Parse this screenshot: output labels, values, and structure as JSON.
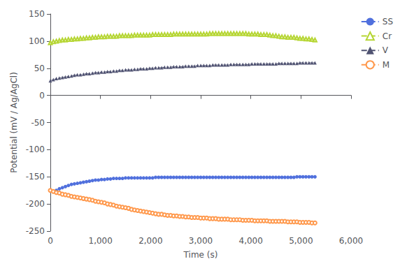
{
  "chart_data": {
    "type": "line",
    "xlabel": "Time (s)",
    "ylabel": "Potential (mV / Ag/AgCl)",
    "xlim": [
      0,
      6000
    ],
    "ylim": [
      -250,
      150
    ],
    "xticks": [
      0,
      1000,
      2000,
      3000,
      4000,
      5000,
      6000
    ],
    "yticks": [
      -250,
      -200,
      -150,
      -100,
      -50,
      0,
      50,
      100,
      150
    ],
    "grid": false,
    "legend": "right",
    "x": [
      0,
      60,
      120,
      180,
      240,
      300,
      360,
      420,
      480,
      540,
      600,
      660,
      720,
      780,
      840,
      900,
      960,
      1020,
      1080,
      1140,
      1200,
      1260,
      1320,
      1380,
      1440,
      1500,
      1560,
      1620,
      1680,
      1740,
      1800,
      1860,
      1920,
      1980,
      2040,
      2100,
      2160,
      2220,
      2280,
      2340,
      2400,
      2460,
      2520,
      2580,
      2640,
      2700,
      2760,
      2820,
      2880,
      2940,
      3000,
      3060,
      3120,
      3180,
      3240,
      3300,
      3360,
      3420,
      3480,
      3540,
      3600,
      3660,
      3720,
      3780,
      3840,
      3900,
      3960,
      4020,
      4080,
      4140,
      4200,
      4260,
      4320,
      4380,
      4440,
      4500,
      4560,
      4620,
      4680,
      4740,
      4800,
      4860,
      4920,
      4980,
      5040,
      5100,
      5160,
      5220,
      5280
    ],
    "series": [
      {
        "name": "SS",
        "marker": "circle",
        "line_style": "dashed",
        "values": [
          -175,
          -177,
          -175,
          -172,
          -170,
          -168,
          -166,
          -164,
          -163,
          -162,
          -161,
          -160,
          -159,
          -158,
          -157,
          -156,
          -156,
          -155,
          -155,
          -154,
          -154,
          -153,
          -153,
          -153,
          -153,
          -152,
          -152,
          -152,
          -152,
          -152,
          -152,
          -152,
          -152,
          -152,
          -152,
          -151,
          -151,
          -151,
          -151,
          -151,
          -151,
          -151,
          -151,
          -151,
          -151,
          -151,
          -151,
          -151,
          -151,
          -151,
          -151,
          -151,
          -151,
          -151,
          -151,
          -151,
          -151,
          -151,
          -151,
          -151,
          -151,
          -151,
          -151,
          -151,
          -151,
          -151,
          -151,
          -151,
          -151,
          -151,
          -151,
          -151,
          -151,
          -151,
          -151,
          -151,
          -151,
          -151,
          -151,
          -151,
          -151,
          -151,
          -150,
          -150,
          -150,
          -150,
          -150,
          -150,
          -150
        ]
      },
      {
        "name": "Cr",
        "marker": "open_triangle",
        "line_style": "dashed",
        "values": [
          97,
          99,
          100,
          101,
          102,
          102,
          103,
          103,
          104,
          104,
          105,
          105,
          106,
          106,
          107,
          107,
          108,
          108,
          108,
          109,
          109,
          109,
          109,
          110,
          110,
          110,
          110,
          110,
          111,
          111,
          111,
          111,
          111,
          111,
          112,
          112,
          112,
          112,
          112,
          112,
          112,
          113,
          113,
          113,
          113,
          113,
          113,
          113,
          113,
          113,
          113,
          113,
          113,
          114,
          114,
          114,
          114,
          114,
          114,
          114,
          114,
          114,
          114,
          114,
          114,
          114,
          113,
          113,
          113,
          113,
          112,
          112,
          112,
          111,
          110,
          110,
          109,
          108,
          108,
          107,
          107,
          107,
          106,
          105,
          105,
          104,
          104,
          103,
          102
        ]
      },
      {
        "name": "V",
        "marker": "triangle",
        "line_style": "dashed",
        "values": [
          27,
          29,
          31,
          32,
          33,
          34,
          35,
          36,
          37,
          38,
          38,
          39,
          40,
          40,
          41,
          42,
          42,
          43,
          43,
          44,
          44,
          45,
          45,
          46,
          46,
          47,
          47,
          47,
          48,
          48,
          49,
          49,
          49,
          50,
          50,
          51,
          51,
          51,
          52,
          52,
          52,
          53,
          53,
          53,
          53,
          54,
          54,
          54,
          54,
          55,
          55,
          55,
          55,
          55,
          56,
          56,
          56,
          56,
          56,
          56,
          57,
          57,
          57,
          57,
          57,
          57,
          57,
          58,
          58,
          58,
          58,
          58,
          58,
          58,
          58,
          58,
          59,
          59,
          59,
          59,
          59,
          59,
          59,
          60,
          60,
          60,
          60,
          60,
          60
        ]
      },
      {
        "name": "M",
        "marker": "open_circle",
        "line_style": "dashed",
        "values": [
          -175,
          -177,
          -179,
          -180,
          -182,
          -183,
          -184,
          -186,
          -187,
          -188,
          -189,
          -190,
          -191,
          -192,
          -193,
          -195,
          -196,
          -197,
          -198,
          -200,
          -201,
          -202,
          -204,
          -205,
          -206,
          -207,
          -208,
          -210,
          -211,
          -212,
          -213,
          -214,
          -215,
          -216,
          -217,
          -218,
          -219,
          -219,
          -220,
          -221,
          -221,
          -222,
          -222,
          -223,
          -223,
          -224,
          -224,
          -225,
          -225,
          -225,
          -226,
          -226,
          -226,
          -227,
          -227,
          -227,
          -228,
          -228,
          -228,
          -228,
          -229,
          -229,
          -229,
          -229,
          -230,
          -230,
          -230,
          -230,
          -231,
          -231,
          -231,
          -231,
          -231,
          -232,
          -232,
          -232,
          -232,
          -232,
          -232,
          -233,
          -233,
          -233,
          -233,
          -234,
          -234,
          -234,
          -234,
          -235,
          -235
        ]
      }
    ]
  }
}
